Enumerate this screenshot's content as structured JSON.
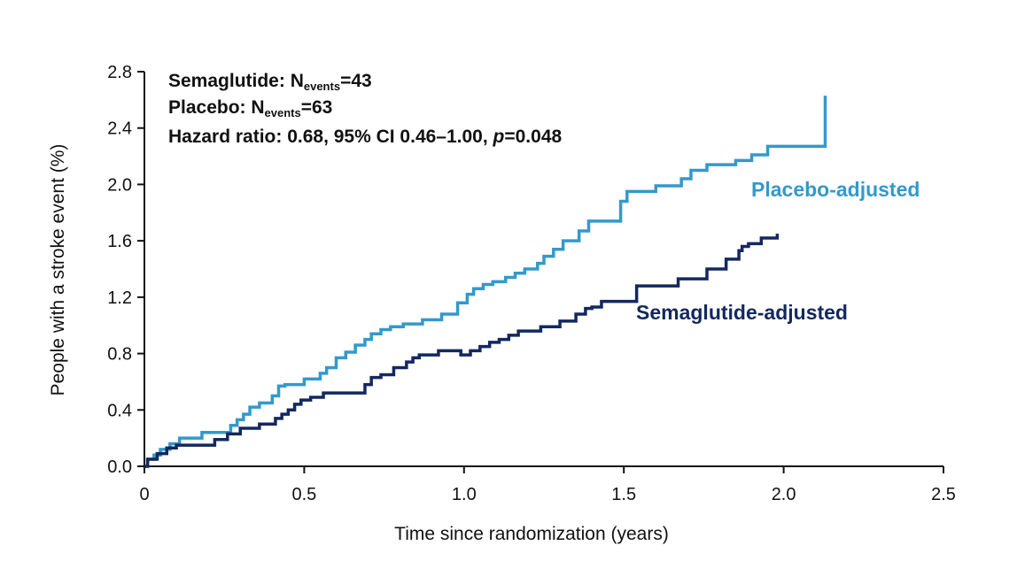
{
  "chart_data": {
    "type": "line",
    "title": "",
    "xlabel": "Time since randomization (years)",
    "ylabel": "People with a stroke event (%)",
    "xlim": [
      0,
      2.5
    ],
    "ylim": [
      0,
      2.8
    ],
    "x_ticks": [
      "0",
      "0.5",
      "1.0",
      "1.5",
      "2.0",
      "2.5"
    ],
    "y_ticks": [
      "0.0",
      "0.4",
      "0.8",
      "1.2",
      "1.6",
      "2.0",
      "2.4",
      "2.8"
    ],
    "grid": false,
    "annotations": {
      "line1": {
        "prefix": "Semaglutide: N",
        "sub": "events",
        "suffix": "=43"
      },
      "line2": {
        "prefix": "Placebo: N",
        "sub": "events",
        "suffix": "=63"
      },
      "line3": {
        "prefix": "Hazard ratio: 0.68, 95% CI 0.46–1.00, ",
        "p": "p",
        "suffix": "=0.048"
      }
    },
    "series": [
      {
        "name": "Placebo-adjusted",
        "color": "#3399cc",
        "step": true,
        "x": [
          0,
          0.01,
          0.03,
          0.05,
          0.08,
          0.11,
          0.18,
          0.27,
          0.29,
          0.31,
          0.33,
          0.36,
          0.4,
          0.42,
          0.44,
          0.5,
          0.55,
          0.57,
          0.6,
          0.63,
          0.66,
          0.69,
          0.71,
          0.74,
          0.77,
          0.81,
          0.87,
          0.93,
          0.98,
          1.01,
          1.03,
          1.06,
          1.09,
          1.13,
          1.16,
          1.19,
          1.23,
          1.25,
          1.28,
          1.31,
          1.36,
          1.39,
          1.49,
          1.51,
          1.6,
          1.68,
          1.71,
          1.76,
          1.85,
          1.9,
          1.95,
          2.04,
          2.13,
          2.13
        ],
        "y": [
          0.0,
          0.05,
          0.08,
          0.12,
          0.16,
          0.2,
          0.24,
          0.29,
          0.33,
          0.37,
          0.42,
          0.45,
          0.5,
          0.57,
          0.58,
          0.62,
          0.66,
          0.7,
          0.77,
          0.81,
          0.86,
          0.9,
          0.94,
          0.97,
          0.99,
          1.01,
          1.04,
          1.08,
          1.16,
          1.22,
          1.26,
          1.29,
          1.31,
          1.34,
          1.37,
          1.4,
          1.44,
          1.49,
          1.54,
          1.6,
          1.67,
          1.74,
          1.88,
          1.95,
          1.99,
          2.04,
          2.1,
          2.14,
          2.17,
          2.21,
          2.27,
          2.27,
          2.63,
          2.63
        ]
      },
      {
        "name": "Semaglutide-adjusted",
        "color": "#13285e",
        "step": true,
        "x": [
          0,
          0.01,
          0.04,
          0.07,
          0.1,
          0.22,
          0.26,
          0.3,
          0.36,
          0.41,
          0.43,
          0.45,
          0.47,
          0.49,
          0.52,
          0.56,
          0.69,
          0.71,
          0.74,
          0.78,
          0.82,
          0.84,
          0.86,
          0.92,
          0.99,
          1.02,
          1.05,
          1.08,
          1.11,
          1.14,
          1.17,
          1.24,
          1.3,
          1.35,
          1.38,
          1.4,
          1.43,
          1.54,
          1.67,
          1.76,
          1.82,
          1.86,
          1.87,
          1.89,
          1.93,
          1.97,
          1.98,
          1.98
        ],
        "y": [
          0.0,
          0.05,
          0.09,
          0.13,
          0.15,
          0.19,
          0.23,
          0.27,
          0.3,
          0.34,
          0.37,
          0.4,
          0.44,
          0.47,
          0.49,
          0.52,
          0.58,
          0.63,
          0.65,
          0.7,
          0.74,
          0.77,
          0.79,
          0.82,
          0.79,
          0.82,
          0.85,
          0.88,
          0.9,
          0.93,
          0.96,
          0.99,
          1.03,
          1.08,
          1.12,
          1.13,
          1.17,
          1.28,
          1.33,
          1.4,
          1.47,
          1.53,
          1.56,
          1.58,
          1.62,
          1.62,
          1.65,
          1.65
        ]
      }
    ]
  }
}
